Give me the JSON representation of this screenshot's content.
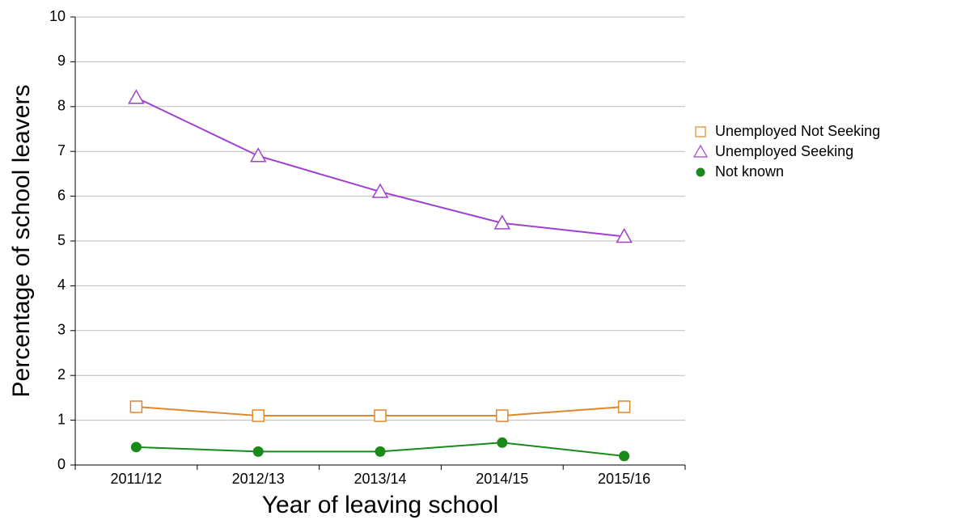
{
  "chart_data": {
    "type": "line",
    "x_label": "Year of leaving school",
    "y_label": "Percentage of school leavers",
    "categories": [
      "2011/12",
      "2012/13",
      "2013/14",
      "2014/15",
      "2015/16"
    ],
    "series": [
      {
        "name": "Unemployed Not Seeking",
        "color": "#e0872a",
        "marker": "square",
        "values": [
          1.3,
          1.1,
          1.1,
          1.1,
          1.3
        ]
      },
      {
        "name": "Unemployed Seeking",
        "color": "#a040d0",
        "marker": "triangle",
        "values": [
          8.2,
          6.9,
          6.1,
          5.4,
          5.1
        ]
      },
      {
        "name": "Not known",
        "color": "#1a8a1a",
        "marker": "circle",
        "values": [
          0.4,
          0.3,
          0.3,
          0.5,
          0.2
        ]
      }
    ],
    "ylim": [
      0,
      10
    ],
    "yticks": [
      0,
      1,
      2,
      3,
      4,
      5,
      6,
      7,
      8,
      9,
      10
    ],
    "grid": true,
    "legend": "right"
  }
}
